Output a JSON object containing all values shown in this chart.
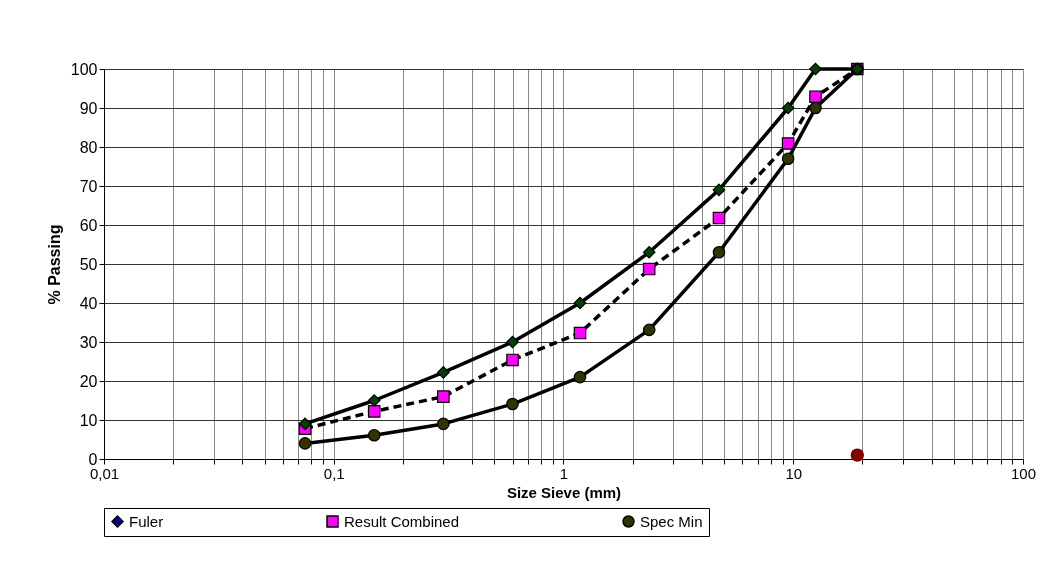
{
  "chart_data": {
    "type": "line",
    "xlabel": "Size Sieve (mm)",
    "ylabel": "% Passing",
    "x": [
      0.075,
      0.15,
      0.3,
      0.6,
      1.18,
      2.36,
      4.75,
      9.5,
      12.5,
      19
    ],
    "series": [
      {
        "name": "Fuler",
        "color": "#000080",
        "marker": "diamond",
        "line_style": "solid",
        "values": [
          null,
          null,
          null,
          null,
          null,
          null,
          null,
          null,
          null,
          null
        ]
      },
      {
        "name": "Result Combined",
        "color": "#ff00ff",
        "marker": "square",
        "line_style": "dashed",
        "values": [
          7.8,
          12.2,
          16.0,
          25.4,
          32.3,
          48.7,
          61.8,
          80.9,
          92.9,
          100
        ]
      },
      {
        "name": "Spec Min",
        "color": "#333300",
        "marker": "circle",
        "line_style": "solid",
        "values": [
          4,
          6.1,
          9,
          14.1,
          21,
          33.1,
          53,
          77,
          90,
          100
        ]
      },
      {
        "color": "#004000",
        "marker": "diamond",
        "line_style": "solid",
        "values": [
          9,
          15,
          22.2,
          30,
          40,
          53,
          69,
          90,
          100,
          100
        ]
      },
      {
        "type": "scatter",
        "color": "#800000",
        "marker": "circle",
        "x": [
          19
        ],
        "values": [
          1
        ]
      }
    ],
    "log": "x",
    "xlim": [
      0.01,
      100
    ],
    "ylim": [
      0,
      100
    ],
    "xticks": [
      {
        "value": 0.01,
        "label": "0,01"
      },
      {
        "value": 0.02,
        "label": null
      },
      {
        "value": 0.03,
        "label": null
      },
      {
        "value": 0.04,
        "label": null
      },
      {
        "value": 0.05,
        "label": null
      },
      {
        "value": 0.06,
        "label": null
      },
      {
        "value": 0.07,
        "label": null
      },
      {
        "value": 0.08,
        "label": null
      },
      {
        "value": 0.09,
        "label": null
      },
      {
        "value": 0.1,
        "label": "0,1"
      },
      {
        "value": 0.2,
        "label": null
      },
      {
        "value": 0.3,
        "label": null
      },
      {
        "value": 0.4,
        "label": null
      },
      {
        "value": 0.5,
        "label": null
      },
      {
        "value": 0.6,
        "label": null
      },
      {
        "value": 0.7,
        "label": null
      },
      {
        "value": 0.8,
        "label": null
      },
      {
        "value": 0.9,
        "label": null
      },
      {
        "value": 1,
        "label": "1"
      },
      {
        "value": 2,
        "label": null
      },
      {
        "value": 3,
        "label": null
      },
      {
        "value": 4,
        "label": null
      },
      {
        "value": 5,
        "label": null
      },
      {
        "value": 6,
        "label": null
      },
      {
        "value": 7,
        "label": null
      },
      {
        "value": 8,
        "label": null
      },
      {
        "value": 9,
        "label": null
      },
      {
        "value": 10,
        "label": "10"
      },
      {
        "value": 20,
        "label": null
      },
      {
        "value": 30,
        "label": null
      },
      {
        "value": 40,
        "label": null
      },
      {
        "value": 50,
        "label": null
      },
      {
        "value": 60,
        "label": null
      },
      {
        "value": 70,
        "label": null
      },
      {
        "value": 80,
        "label": null
      },
      {
        "value": 90,
        "label": null
      },
      {
        "value": 100,
        "label": "100"
      }
    ],
    "yticks": [
      0,
      10,
      20,
      30,
      40,
      50,
      60,
      70,
      80,
      90,
      100
    ],
    "grid": true,
    "legend": "bottom"
  }
}
